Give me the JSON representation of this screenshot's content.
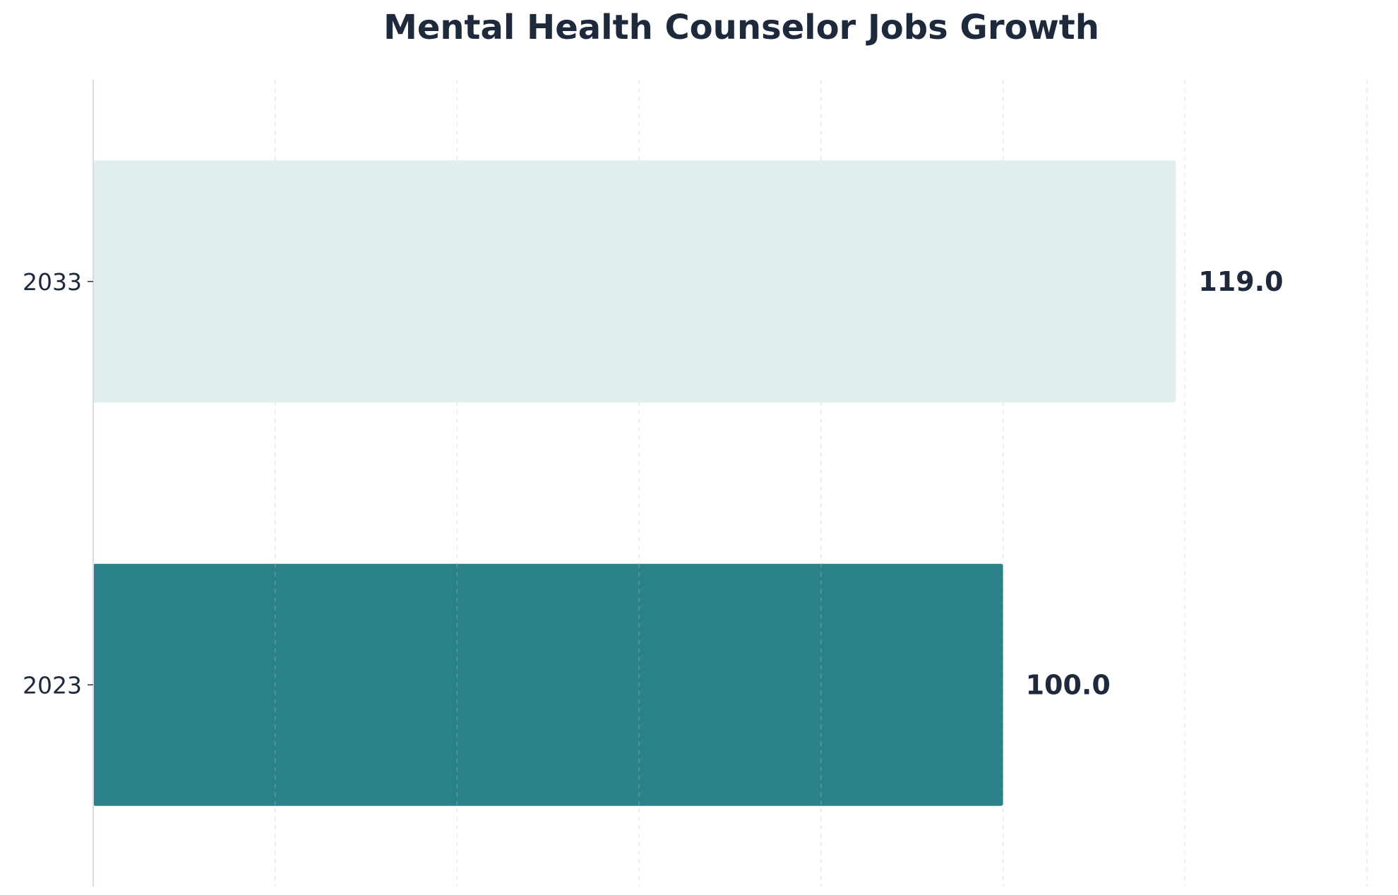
{
  "chart_data": {
    "type": "bar",
    "orientation": "horizontal",
    "title": "Mental Health Counselor Jobs Growth",
    "xlabel": "",
    "ylabel": "",
    "categories": [
      "2023",
      "2033"
    ],
    "values": [
      100.0,
      119.0
    ],
    "value_labels": [
      "100.0",
      "119.0"
    ],
    "xlim": [
      0,
      140
    ],
    "grid": {
      "x": true,
      "y": false,
      "style": "dashed"
    },
    "colors": {
      "bars": [
        "#2a8188",
        "#e0eeee"
      ],
      "text": "#1e293b",
      "axis": "#d8dcf0",
      "grid": "#e6e8f2"
    }
  }
}
